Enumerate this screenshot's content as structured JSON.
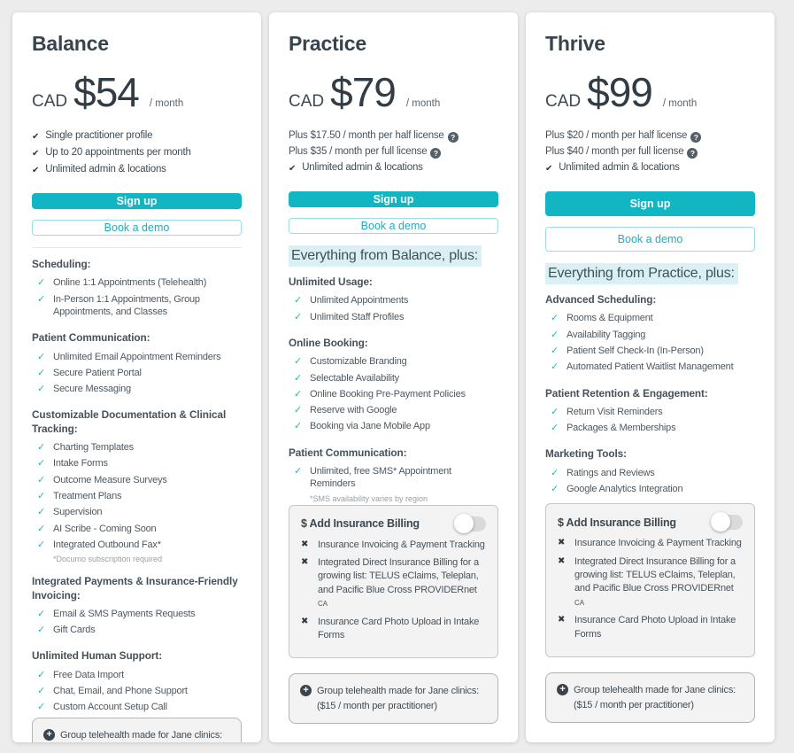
{
  "icons": {
    "check_bold": "✔",
    "check": "✓",
    "cross": "✖",
    "help": "?",
    "plus": "+"
  },
  "colors": {
    "accent_teal": "#12b5c2",
    "check_teal": "#2cb5b0",
    "highlight_bg": "#d9f1f4",
    "page_bg": "#ececec"
  },
  "shared": {
    "signup_label": "Sign up",
    "demo_label": "Book a demo",
    "telehealth_line1": "Group telehealth made for Jane clinics:",
    "telehealth_line2": "($15 / month per practitioner)",
    "insurance": {
      "title": "$ Add Insurance Billing",
      "toggle_state": "off",
      "items": [
        "Insurance Invoicing & Payment Tracking",
        "Integrated Direct Insurance Billing for a growing list: TELUS eClaims, Teleplan, and Pacific Blue Cross PROVIDERnet",
        "Insurance Card Photo Upload in Intake Forms"
      ],
      "provider_suffix": "CA"
    }
  },
  "plans": [
    {
      "name": "Balance",
      "currency": "CAD",
      "price": "$54",
      "period": "/ month",
      "bullets": [
        "Single practitioner profile",
        "Up to 20 appointments per month",
        "Unlimited admin & locations"
      ],
      "sections": [
        {
          "title": "Scheduling:",
          "items": [
            "Online 1:1 Appointments (Telehealth)",
            "In-Person 1:1 Appointments, Group Appointments, and Classes"
          ]
        },
        {
          "title": "Patient Communication:",
          "items": [
            "Unlimited Email Appointment Reminders",
            "Secure Patient Portal",
            "Secure Messaging"
          ]
        },
        {
          "title": "Customizable Documentation & Clinical Tracking:",
          "items": [
            "Charting Templates",
            "Intake Forms",
            "Outcome Measure Surveys",
            "Treatment Plans",
            "Supervision",
            "AI Scribe - Coming Soon",
            "Integrated Outbound Fax*"
          ],
          "footnote": "*Documo subscription required"
        },
        {
          "title": "Integrated Payments & Insurance-Friendly Invoicing:",
          "items": [
            "Email & SMS Payments Requests",
            "Gift Cards"
          ]
        },
        {
          "title": "Unlimited Human Support:",
          "items": [
            "Free Data Import",
            "Chat, Email, and Phone Support",
            "Custom Account Setup Call"
          ]
        }
      ]
    },
    {
      "name": "Practice",
      "currency": "CAD",
      "price": "$79",
      "period": "/ month",
      "plus_lines": [
        "Plus $17.50 / month per half license",
        "Plus $35 / month per full license"
      ],
      "bullets": [
        "Unlimited admin & locations"
      ],
      "everything": "Everything from Balance, plus:",
      "sections": [
        {
          "title": "Unlimited Usage:",
          "items": [
            "Unlimited Appointments",
            "Unlimited Staff Profiles"
          ]
        },
        {
          "title": "Online Booking:",
          "items": [
            "Customizable Branding",
            "Selectable Availability",
            "Online Booking Pre-Payment Policies",
            "Reserve with Google",
            "Booking via Jane Mobile App"
          ]
        },
        {
          "title": "Patient Communication:",
          "items": [
            "Unlimited, free SMS* Appointment Reminders"
          ],
          "footnote": "*SMS availability varies by region"
        }
      ]
    },
    {
      "name": "Thrive",
      "currency": "CAD",
      "price": "$99",
      "period": "/ month",
      "plus_lines": [
        "Plus $20 / month per half license",
        "Plus $40 / month per full license"
      ],
      "bullets": [
        "Unlimited admin & locations"
      ],
      "everything": "Everything from Practice, plus:",
      "sections": [
        {
          "title": "Advanced Scheduling:",
          "items": [
            "Rooms & Equipment",
            "Availability Tagging",
            "Patient Self Check-In (In-Person)",
            "Automated Patient Waitlist Management"
          ]
        },
        {
          "title": "Patient Retention & Engagement:",
          "items": [
            "Return Visit Reminders",
            "Packages & Memberships"
          ]
        },
        {
          "title": "Marketing Tools:",
          "items": [
            "Ratings and Reviews",
            "Google Analytics Integration"
          ]
        }
      ]
    }
  ]
}
